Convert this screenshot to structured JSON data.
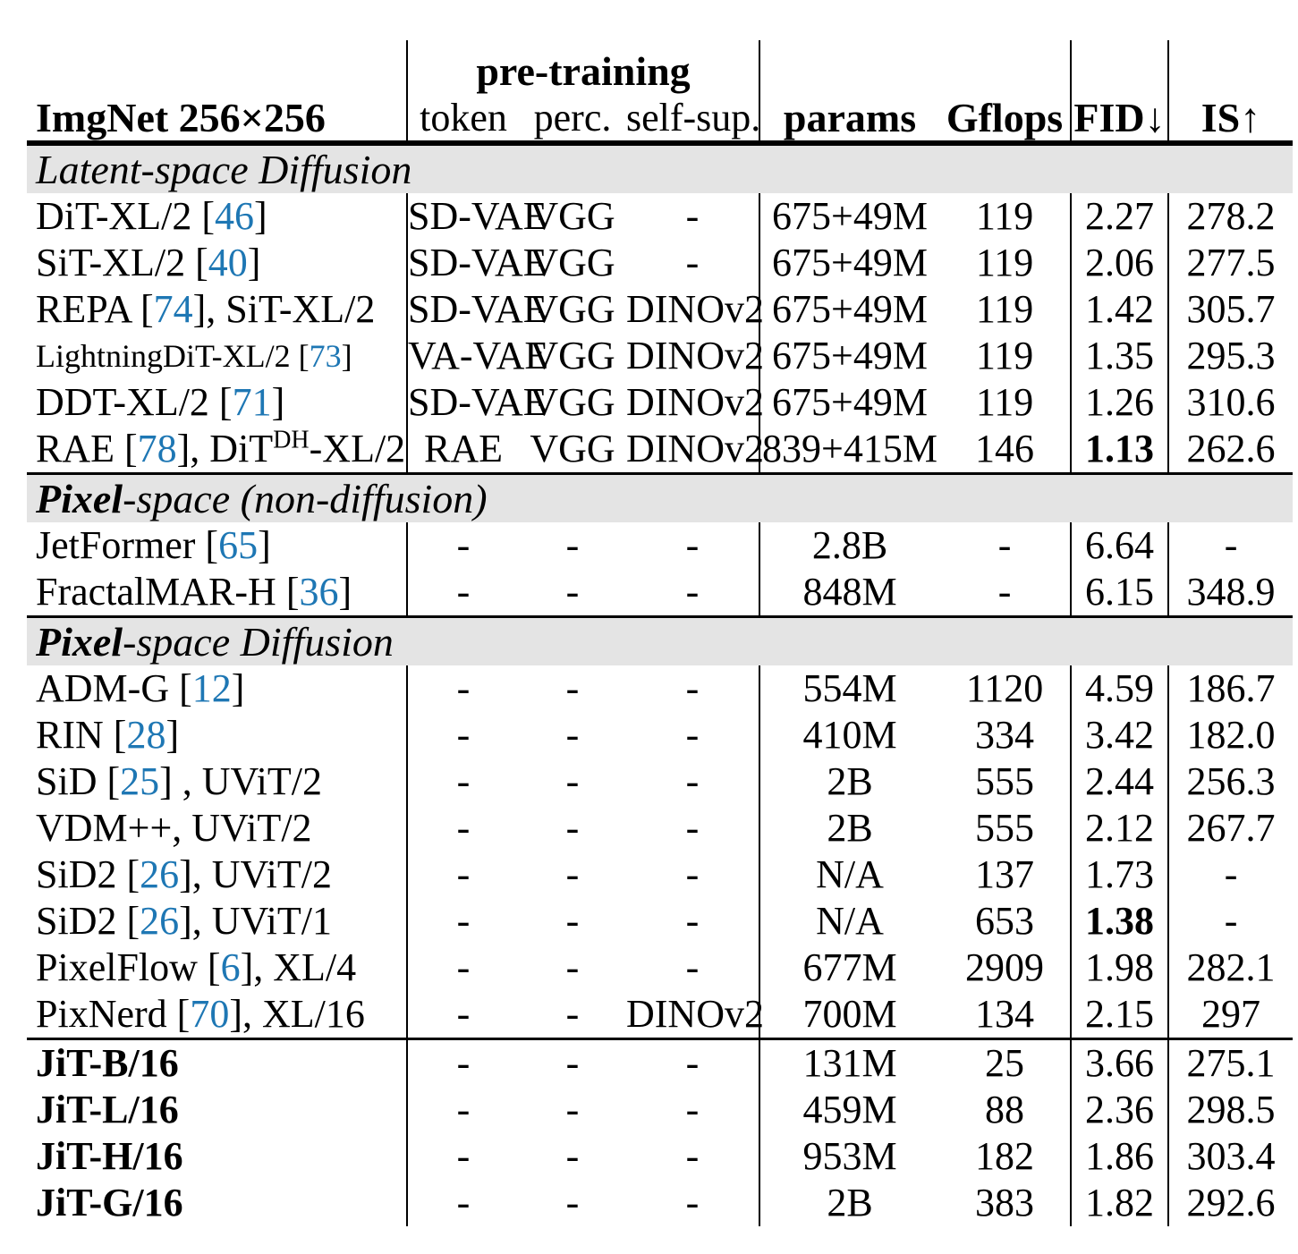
{
  "colors": {
    "citation_blue": "#1e77b4",
    "band_gray": "#e4e4e4",
    "rule_black": "#000000"
  },
  "header": {
    "corner_label": "ImgNet 256×256",
    "group_label": "pre-training",
    "subheaders": [
      "token",
      "perc.",
      "self-sup."
    ],
    "metric_headers": [
      "params",
      "Gflops",
      "FID↓",
      "IS↑"
    ]
  },
  "sections": [
    {
      "band": [
        {
          "t": "Latent-space Diffusion",
          "bold": false
        }
      ],
      "rows": [
        {
          "name": [
            {
              "t": "DiT-XL/2 ["
            },
            {
              "t": "46",
              "s": "cite"
            },
            {
              "t": "]"
            }
          ],
          "token": "SD-VAE",
          "perc": "VGG",
          "selfsup": "-",
          "params": "675+49M",
          "gflops": "119",
          "fid": "2.27",
          "is": "278.2"
        },
        {
          "name": [
            {
              "t": "SiT-XL/2 ["
            },
            {
              "t": "40",
              "s": "cite"
            },
            {
              "t": "]"
            }
          ],
          "token": "SD-VAE",
          "perc": "VGG",
          "selfsup": "-",
          "params": "675+49M",
          "gflops": "119",
          "fid": "2.06",
          "is": "277.5"
        },
        {
          "name": [
            {
              "t": "REPA ["
            },
            {
              "t": "74",
              "s": "cite"
            },
            {
              "t": "], SiT-XL/2"
            }
          ],
          "token": "SD-VAE",
          "perc": "VGG",
          "selfsup": "DINOv2",
          "params": "675+49M",
          "gflops": "119",
          "fid": "1.42",
          "is": "305.7"
        },
        {
          "name": [
            {
              "t": "LightningDiT-XL/2 ["
            },
            {
              "t": "73",
              "s": "cite"
            },
            {
              "t": "]"
            }
          ],
          "name_small": true,
          "token": "VA-VAE",
          "perc": "VGG",
          "selfsup": "DINOv2",
          "params": "675+49M",
          "gflops": "119",
          "fid": "1.35",
          "is": "295.3"
        },
        {
          "name": [
            {
              "t": "DDT-XL/2 ["
            },
            {
              "t": "71",
              "s": "cite"
            },
            {
              "t": "]"
            }
          ],
          "token": "SD-VAE",
          "perc": "VGG",
          "selfsup": "DINOv2",
          "params": "675+49M",
          "gflops": "119",
          "fid": "1.26",
          "is": "310.6"
        },
        {
          "name": [
            {
              "t": "RAE ["
            },
            {
              "t": "78",
              "s": "cite"
            },
            {
              "t": "], DiT"
            },
            {
              "t": "DH",
              "s": "sup"
            },
            {
              "t": "-XL/2"
            }
          ],
          "token": "RAE",
          "perc": "VGG",
          "selfsup": "DINOv2",
          "params": "839+415M",
          "gflops": "146",
          "fid": "1.13",
          "fid_bold": true,
          "is": "262.6"
        }
      ]
    },
    {
      "band": [
        {
          "t": "Pixel",
          "bold": true
        },
        {
          "t": "-space (non-diffusion)",
          "bold": false
        }
      ],
      "rows": [
        {
          "name": [
            {
              "t": "JetFormer ["
            },
            {
              "t": "65",
              "s": "cite"
            },
            {
              "t": "]"
            }
          ],
          "token": "-",
          "perc": "-",
          "selfsup": "-",
          "params": "2.8B",
          "gflops": "-",
          "fid": "6.64",
          "is": "-"
        },
        {
          "name": [
            {
              "t": "FractalMAR-H ["
            },
            {
              "t": "36",
              "s": "cite"
            },
            {
              "t": "]"
            }
          ],
          "token": "-",
          "perc": "-",
          "selfsup": "-",
          "params": "848M",
          "gflops": "-",
          "fid": "6.15",
          "is": "348.9"
        }
      ]
    },
    {
      "band": [
        {
          "t": "Pixel",
          "bold": true
        },
        {
          "t": "-space Diffusion",
          "bold": false
        }
      ],
      "rows": [
        {
          "name": [
            {
              "t": "ADM-G ["
            },
            {
              "t": "12",
              "s": "cite"
            },
            {
              "t": "]"
            }
          ],
          "token": "-",
          "perc": "-",
          "selfsup": "-",
          "params": "554M",
          "gflops": "1120",
          "fid": "4.59",
          "is": "186.7"
        },
        {
          "name": [
            {
              "t": "RIN ["
            },
            {
              "t": "28",
              "s": "cite"
            },
            {
              "t": "]"
            }
          ],
          "token": "-",
          "perc": "-",
          "selfsup": "-",
          "params": "410M",
          "gflops": "334",
          "fid": "3.42",
          "is": "182.0"
        },
        {
          "name": [
            {
              "t": "SiD ["
            },
            {
              "t": "25",
              "s": "cite"
            },
            {
              "t": "] , UViT/2"
            }
          ],
          "token": "-",
          "perc": "-",
          "selfsup": "-",
          "params": "2B",
          "gflops": "555",
          "fid": "2.44",
          "is": "256.3"
        },
        {
          "name": [
            {
              "t": "VDM++, UViT/2"
            }
          ],
          "token": "-",
          "perc": "-",
          "selfsup": "-",
          "params": "2B",
          "gflops": "555",
          "fid": "2.12",
          "is": "267.7"
        },
        {
          "name": [
            {
              "t": "SiD2 ["
            },
            {
              "t": "26",
              "s": "cite"
            },
            {
              "t": "], UViT/2"
            }
          ],
          "token": "-",
          "perc": "-",
          "selfsup": "-",
          "params": "N/A",
          "gflops": "137",
          "fid": "1.73",
          "is": "-"
        },
        {
          "name": [
            {
              "t": "SiD2 ["
            },
            {
              "t": "26",
              "s": "cite"
            },
            {
              "t": "], UViT/1"
            }
          ],
          "token": "-",
          "perc": "-",
          "selfsup": "-",
          "params": "N/A",
          "gflops": "653",
          "fid": "1.38",
          "fid_bold": true,
          "is": "-"
        },
        {
          "name": [
            {
              "t": "PixelFlow ["
            },
            {
              "t": "6",
              "s": "cite"
            },
            {
              "t": "], XL/4"
            }
          ],
          "token": "-",
          "perc": "-",
          "selfsup": "-",
          "params": "677M",
          "gflops": "2909",
          "fid": "1.98",
          "is": "282.1"
        },
        {
          "name": [
            {
              "t": "PixNerd ["
            },
            {
              "t": "70",
              "s": "cite"
            },
            {
              "t": "], XL/16"
            }
          ],
          "token": "-",
          "perc": "-",
          "selfsup": "DINOv2",
          "params": "700M",
          "gflops": "134",
          "fid": "2.15",
          "is": "297"
        }
      ]
    },
    {
      "band": null,
      "rows": [
        {
          "name": [
            {
              "t": "JiT-B/16"
            }
          ],
          "name_bold": true,
          "token": "-",
          "perc": "-",
          "selfsup": "-",
          "params": "131M",
          "gflops": "25",
          "fid": "3.66",
          "is": "275.1"
        },
        {
          "name": [
            {
              "t": "JiT-L/16"
            }
          ],
          "name_bold": true,
          "token": "-",
          "perc": "-",
          "selfsup": "-",
          "params": "459M",
          "gflops": "88",
          "fid": "2.36",
          "is": "298.5"
        },
        {
          "name": [
            {
              "t": "JiT-H/16"
            }
          ],
          "name_bold": true,
          "token": "-",
          "perc": "-",
          "selfsup": "-",
          "params": "953M",
          "gflops": "182",
          "fid": "1.86",
          "is": "303.4"
        },
        {
          "name": [
            {
              "t": "JiT-G/16"
            }
          ],
          "name_bold": true,
          "token": "-",
          "perc": "-",
          "selfsup": "-",
          "params": "2B",
          "gflops": "383",
          "fid": "1.82",
          "is": "292.6"
        }
      ]
    }
  ]
}
